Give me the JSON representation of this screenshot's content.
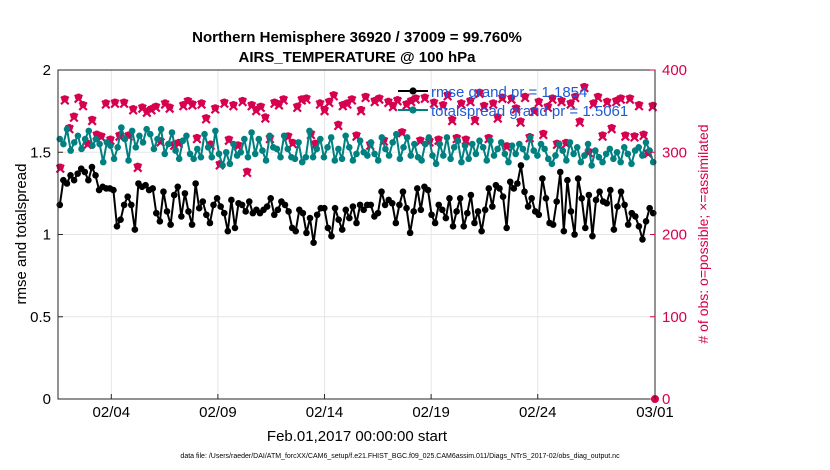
{
  "chart_data": {
    "type": "line",
    "title_line1": "Northern Hemisphere 36920 / 37009 = 99.760%",
    "title_line2": "AIRS_TEMPERATURE @ 100 hPa",
    "xlabel": "Feb.01,2017 00:00:00 start",
    "ylabel": "rmse and totalspread",
    "ylabel_right": "# of obs: o=possible; ×=assimilated",
    "xlim": [
      0,
      28
    ],
    "ylim": [
      0,
      2
    ],
    "ylim_right": [
      0,
      400
    ],
    "x_ticks": [
      2.5,
      7.5,
      12.5,
      17.5,
      22.5,
      28
    ],
    "x_tick_labels": [
      "02/04",
      "02/09",
      "02/14",
      "02/19",
      "02/24",
      "03/01"
    ],
    "y_ticks": [
      0,
      0.5,
      1,
      1.5,
      2
    ],
    "y_tick_labels": [
      "0",
      "0.5",
      "1",
      "1.5",
      "2"
    ],
    "y_right_ticks": [
      0,
      100,
      200,
      300,
      400
    ],
    "y_right_tick_labels": [
      "0",
      "100",
      "200",
      "300",
      "400"
    ],
    "series": [
      {
        "name": "rmse grand pr = 1.1854",
        "color": "#000000",
        "values": [
          1.18,
          1.33,
          1.31,
          1.36,
          1.33,
          1.37,
          1.4,
          1.38,
          1.33,
          1.41,
          1.36,
          1.27,
          1.29,
          1.28,
          1.28,
          1.27,
          1.05,
          1.09,
          1.18,
          1.23,
          1.18,
          1.03,
          1.31,
          1.29,
          1.3,
          1.27,
          1.28,
          1.13,
          1.08,
          1.26,
          1.14,
          1.06,
          1.24,
          1.29,
          1.11,
          1.25,
          1.14,
          1.06,
          1.31,
          1.16,
          1.2,
          1.12,
          1.07,
          1.18,
          1.22,
          1.17,
          1.13,
          1.02,
          1.21,
          1.04,
          1.19,
          1.18,
          1.14,
          1.2,
          1.13,
          1.15,
          1.13,
          1.15,
          1.17,
          1.22,
          1.12,
          1.15,
          1.2,
          1.18,
          1.14,
          1.04,
          1.02,
          1.15,
          1.13,
          1.01,
          1.1,
          0.95,
          1.12,
          1.16,
          1.16,
          1.04,
          0.99,
          1.16,
          1.09,
          1.03,
          1.15,
          1.1,
          1.17,
          1.07,
          1.18,
          1.15,
          1.18,
          1.18,
          1.11,
          1.13,
          1.26,
          1.18,
          1.21,
          1.19,
          1.07,
          1.18,
          1.26,
          1.16,
          1.01,
          1.14,
          1.28,
          1.15,
          1.29,
          1.27,
          1.12,
          1.07,
          1.18,
          1.15,
          1.1,
          1.22,
          1.05,
          1.14,
          1.22,
          1.05,
          1.13,
          1.24,
          1.07,
          1.14,
          1.02,
          1.15,
          1.28,
          1.17,
          1.3,
          1.28,
          1.23,
          1.04,
          1.32,
          1.28,
          1.31,
          1.42,
          1.26,
          1.17,
          1.22,
          1.14,
          1.12,
          1.34,
          1.22,
          1.07,
          1.06,
          1.2,
          1.38,
          1.02,
          1.33,
          1.14,
          1.0,
          1.34,
          1.22,
          1.04,
          1.24,
          0.99,
          1.21,
          1.26,
          1.2,
          1.19,
          1.27,
          1.03,
          1.17,
          1.26,
          1.18,
          1.06,
          1.13,
          1.11,
          1.05,
          0.97,
          1.08,
          1.16,
          1.13
        ]
      },
      {
        "name": "totalspread grand pr = 1.5061",
        "color": "#008080",
        "values": [
          1.58,
          1.55,
          1.64,
          1.51,
          1.56,
          1.6,
          1.52,
          1.58,
          1.63,
          1.54,
          1.58,
          1.55,
          1.44,
          1.56,
          1.54,
          1.46,
          1.53,
          1.65,
          1.58,
          1.45,
          1.63,
          1.53,
          1.6,
          1.56,
          1.64,
          1.61,
          1.52,
          1.58,
          1.64,
          1.49,
          1.55,
          1.62,
          1.51,
          1.46,
          1.57,
          1.6,
          1.49,
          1.46,
          1.52,
          1.47,
          1.61,
          1.53,
          1.47,
          1.63,
          1.49,
          1.42,
          1.5,
          1.43,
          1.55,
          1.48,
          1.5,
          1.58,
          1.47,
          1.62,
          1.49,
          1.58,
          1.51,
          1.45,
          1.6,
          1.53,
          1.52,
          1.47,
          1.6,
          1.52,
          1.47,
          1.46,
          1.56,
          1.44,
          1.47,
          1.63,
          1.47,
          1.52,
          1.58,
          1.47,
          1.53,
          1.59,
          1.45,
          1.52,
          1.46,
          1.6,
          1.53,
          1.45,
          1.49,
          1.57,
          1.5,
          1.48,
          1.56,
          1.49,
          1.45,
          1.59,
          1.52,
          1.48,
          1.56,
          1.61,
          1.46,
          1.53,
          1.59,
          1.48,
          1.55,
          1.47,
          1.45,
          1.55,
          1.59,
          1.48,
          1.43,
          1.55,
          1.48,
          1.59,
          1.46,
          1.53,
          1.57,
          1.44,
          1.54,
          1.46,
          1.55,
          1.49,
          1.57,
          1.53,
          1.45,
          1.57,
          1.48,
          1.52,
          1.56,
          1.49,
          1.44,
          1.54,
          1.49,
          1.55,
          1.52,
          1.47,
          1.59,
          1.51,
          1.48,
          1.55,
          1.52,
          1.46,
          1.43,
          1.48,
          1.55,
          1.51,
          1.45,
          1.56,
          1.49,
          1.53,
          1.44,
          1.48,
          1.55,
          1.42,
          1.51,
          1.47,
          1.44,
          1.49,
          1.52,
          1.46,
          1.5,
          1.44,
          1.53,
          1.49,
          1.43,
          1.51,
          1.53,
          1.48,
          1.56,
          1.51,
          1.44
        ]
      }
    ],
    "obs_possible": {
      "name": "possible",
      "color": "#d6004f",
      "values": [
        282,
        365,
        330,
        344,
        367,
        358,
        311,
        340,
        322,
        320,
        360,
        316,
        361,
        321,
        361,
        321,
        353,
        283,
        355,
        350,
        353,
        356,
        314,
        360,
        355,
        310,
        312,
        358,
        363,
        359,
        318,
        360,
        342,
        310,
        354,
        286,
        361,
        316,
        358,
        309,
        363,
        277,
        358,
        352,
        356,
        343,
        318,
        361,
        359,
        365,
        320,
        312,
        356,
        365,
        366,
        323,
        311,
        360,
        352,
        362,
        370,
        334,
        358,
        360,
        365,
        321,
        352,
        368,
        310,
        363,
        366,
        315,
        362,
        357,
        364,
        325,
        359,
        363,
        366,
        315,
        367,
        314,
        361,
        316,
        358,
        370,
        340,
        318,
        360,
        316,
        363,
        340,
        373,
        357,
        318,
        360,
        343,
        367,
        308,
        366,
        354,
        338,
        368,
        319,
        351,
        362,
        323,
        356,
        366,
        311,
        363,
        312,
        360,
        368,
        338,
        380,
        301,
        360,
        368,
        321,
        362,
        330,
        363,
        366,
        321,
        366,
        320,
        358,
        322,
        300,
        357
      ]
    },
    "obs_assimilated": {
      "name": "assimilated",
      "color": "#d6004f",
      "values": [
        280,
        363,
        328,
        342,
        365,
        356,
        309,
        338,
        320,
        318,
        358,
        314,
        359,
        319,
        359,
        319,
        351,
        281,
        353,
        348,
        351,
        354,
        312,
        358,
        353,
        308,
        310,
        356,
        361,
        357,
        316,
        358,
        340,
        308,
        352,
        284,
        359,
        314,
        356,
        307,
        361,
        275,
        356,
        350,
        354,
        341,
        316,
        359,
        357,
        363,
        318,
        310,
        354,
        363,
        364,
        321,
        309,
        358,
        350,
        360,
        368,
        332,
        356,
        358,
        363,
        319,
        350,
        366,
        308,
        361,
        364,
        313,
        360,
        355,
        362,
        323,
        357,
        361,
        364,
        313,
        365,
        312,
        359,
        314,
        356,
        368,
        338,
        316,
        358,
        314,
        361,
        338,
        371,
        355,
        316,
        358,
        341,
        365,
        306,
        364,
        352,
        336,
        366,
        317,
        349,
        360,
        321,
        354,
        364,
        309,
        361,
        310,
        358,
        366,
        336,
        378,
        299,
        358,
        366,
        319,
        360,
        328,
        361,
        364,
        319,
        364,
        318,
        356,
        320,
        298,
        355
      ]
    },
    "obs_end_marker": 0,
    "footer": "data file: /Users/raeder/DAI/ATM_forcXX/CAM6_setup/f.e21.FHIST_BGC.f09_025.CAM6assim.011/Diags_NTrS_2017-02/obs_diag_output.nc"
  }
}
